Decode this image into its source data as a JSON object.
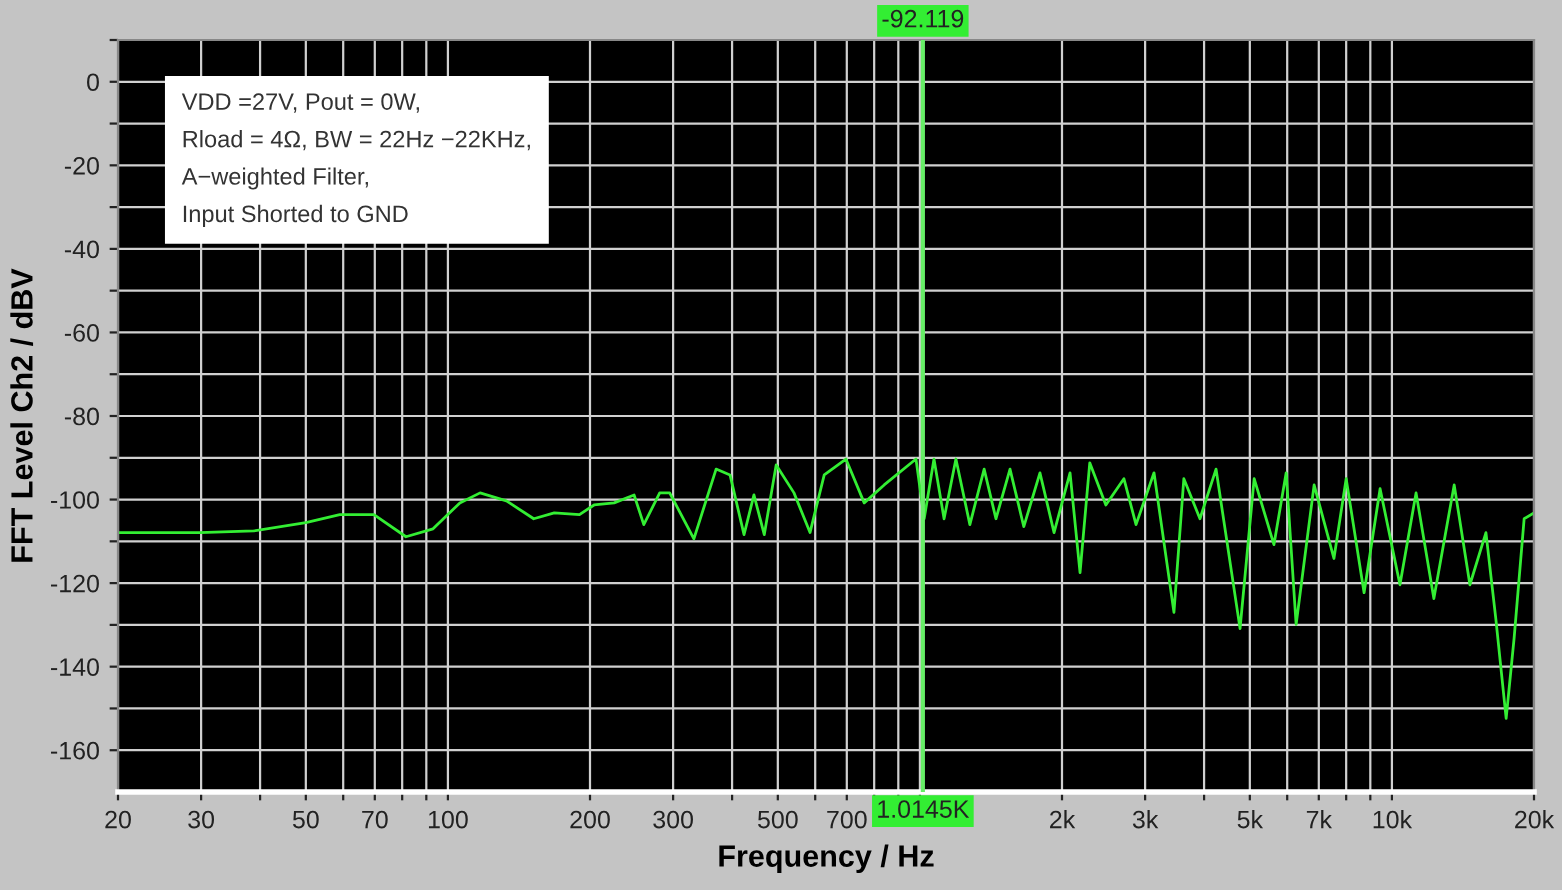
{
  "chart_data": {
    "type": "line",
    "xlabel": "Frequency / Hz",
    "ylabel": "FFT Level Ch2 / dBV",
    "log": "x",
    "grid": true,
    "line_style": "solid",
    "marker": "none",
    "xlim": [
      20,
      20000
    ],
    "ylim": [
      -170,
      10
    ],
    "xticks": [
      20,
      30,
      {
        "value": 40,
        "label": null
      },
      50,
      {
        "value": 60,
        "label": null
      },
      70,
      {
        "value": 80,
        "label": null
      },
      {
        "value": 90,
        "label": null
      },
      100,
      200,
      300,
      {
        "value": 400,
        "label": null
      },
      500,
      {
        "value": 600,
        "label": null
      },
      700,
      {
        "value": 800,
        "label": null
      },
      {
        "value": 900,
        "label": null
      },
      {
        "value": 1000,
        "label": null
      },
      {
        "value": 2000,
        "label": "2k"
      },
      {
        "value": 3000,
        "label": "3k"
      },
      {
        "value": 4000,
        "label": null
      },
      {
        "value": 5000,
        "label": "5k"
      },
      {
        "value": 6000,
        "label": null
      },
      {
        "value": 7000,
        "label": "7k"
      },
      {
        "value": 8000,
        "label": null
      },
      {
        "value": 9000,
        "label": null
      },
      {
        "value": 10000,
        "label": "10k"
      },
      {
        "value": 20000,
        "label": "20k"
      }
    ],
    "yticks": [
      {
        "value": 10,
        "label": null
      },
      0,
      {
        "value": -10,
        "label": null
      },
      -20,
      {
        "value": -30,
        "label": null
      },
      -40,
      {
        "value": -50,
        "label": null
      },
      -60,
      {
        "value": -70,
        "label": null
      },
      -80,
      {
        "value": -90,
        "label": null
      },
      -100,
      {
        "value": -110,
        "label": null
      },
      -120,
      {
        "value": -130,
        "label": null
      },
      -140,
      {
        "value": -150,
        "label": null
      },
      -160
    ],
    "ref_lines": [
      {
        "axis": "x",
        "value": 1014.5,
        "label": "1.0145K",
        "color": "#66ee66"
      }
    ],
    "annotations": [
      "VDD =27V, Pout = 0W,\nRload = 4Ω, BW = 22Hz −22KHz,\nA−weighted Filter,\nInput Shorted to GND",
      "-92.119"
    ],
    "series": [
      {
        "color": "#33ee33",
        "x": [
          20,
          29.8,
          38.8,
          50,
          59,
          69.7,
          81.5,
          93,
          106,
          117,
          133,
          152,
          168,
          190,
          204,
          225,
          248,
          260,
          281,
          295,
          332,
          370,
          396,
          424,
          445,
          468,
          496,
          541,
          585,
          627,
          697,
          762,
          840,
          981,
          1021,
          1071,
          1125,
          1192,
          1276,
          1368,
          1449,
          1552,
          1660,
          1796,
          1924,
          2080,
          2184,
          2290,
          2477,
          2705,
          2870,
          3133,
          3453,
          3624,
          3920,
          4240,
          4767,
          5107,
          5624,
          5970,
          6267,
          6842,
          7536,
          8000,
          8730,
          9440,
          10400,
          11250,
          12270,
          13550,
          14630,
          15820,
          16600,
          17460,
          18150,
          19060,
          20000
        ],
        "values": [
          -107.9,
          -107.9,
          -107.5,
          -105.5,
          -103.6,
          -103.6,
          -108.9,
          -107.0,
          -100.8,
          -98.4,
          -100.3,
          -104.6,
          -103.2,
          -103.6,
          -101.3,
          -100.8,
          -98.9,
          -106.0,
          -98.4,
          -98.4,
          -109.4,
          -92.7,
          -94.1,
          -108.4,
          -98.9,
          -108.4,
          -91.7,
          -98.4,
          -107.9,
          -94.1,
          -90.3,
          -100.8,
          -96.5,
          -90.3,
          -104.6,
          -90.3,
          -104.6,
          -90.3,
          -106.0,
          -92.7,
          -104.6,
          -92.7,
          -106.5,
          -93.6,
          -107.9,
          -93.6,
          -117.5,
          -91.2,
          -101.3,
          -95.0,
          -106.0,
          -93.6,
          -127.0,
          -95.0,
          -104.6,
          -92.7,
          -130.9,
          -95.0,
          -110.8,
          -93.6,
          -129.9,
          -96.5,
          -114.1,
          -95.0,
          -122.3,
          -97.4,
          -120.4,
          -98.4,
          -123.7,
          -96.5,
          -120.4,
          -107.9,
          -128.5,
          -152.4,
          -133.2,
          -104.6,
          -103.2
        ]
      }
    ]
  }
}
